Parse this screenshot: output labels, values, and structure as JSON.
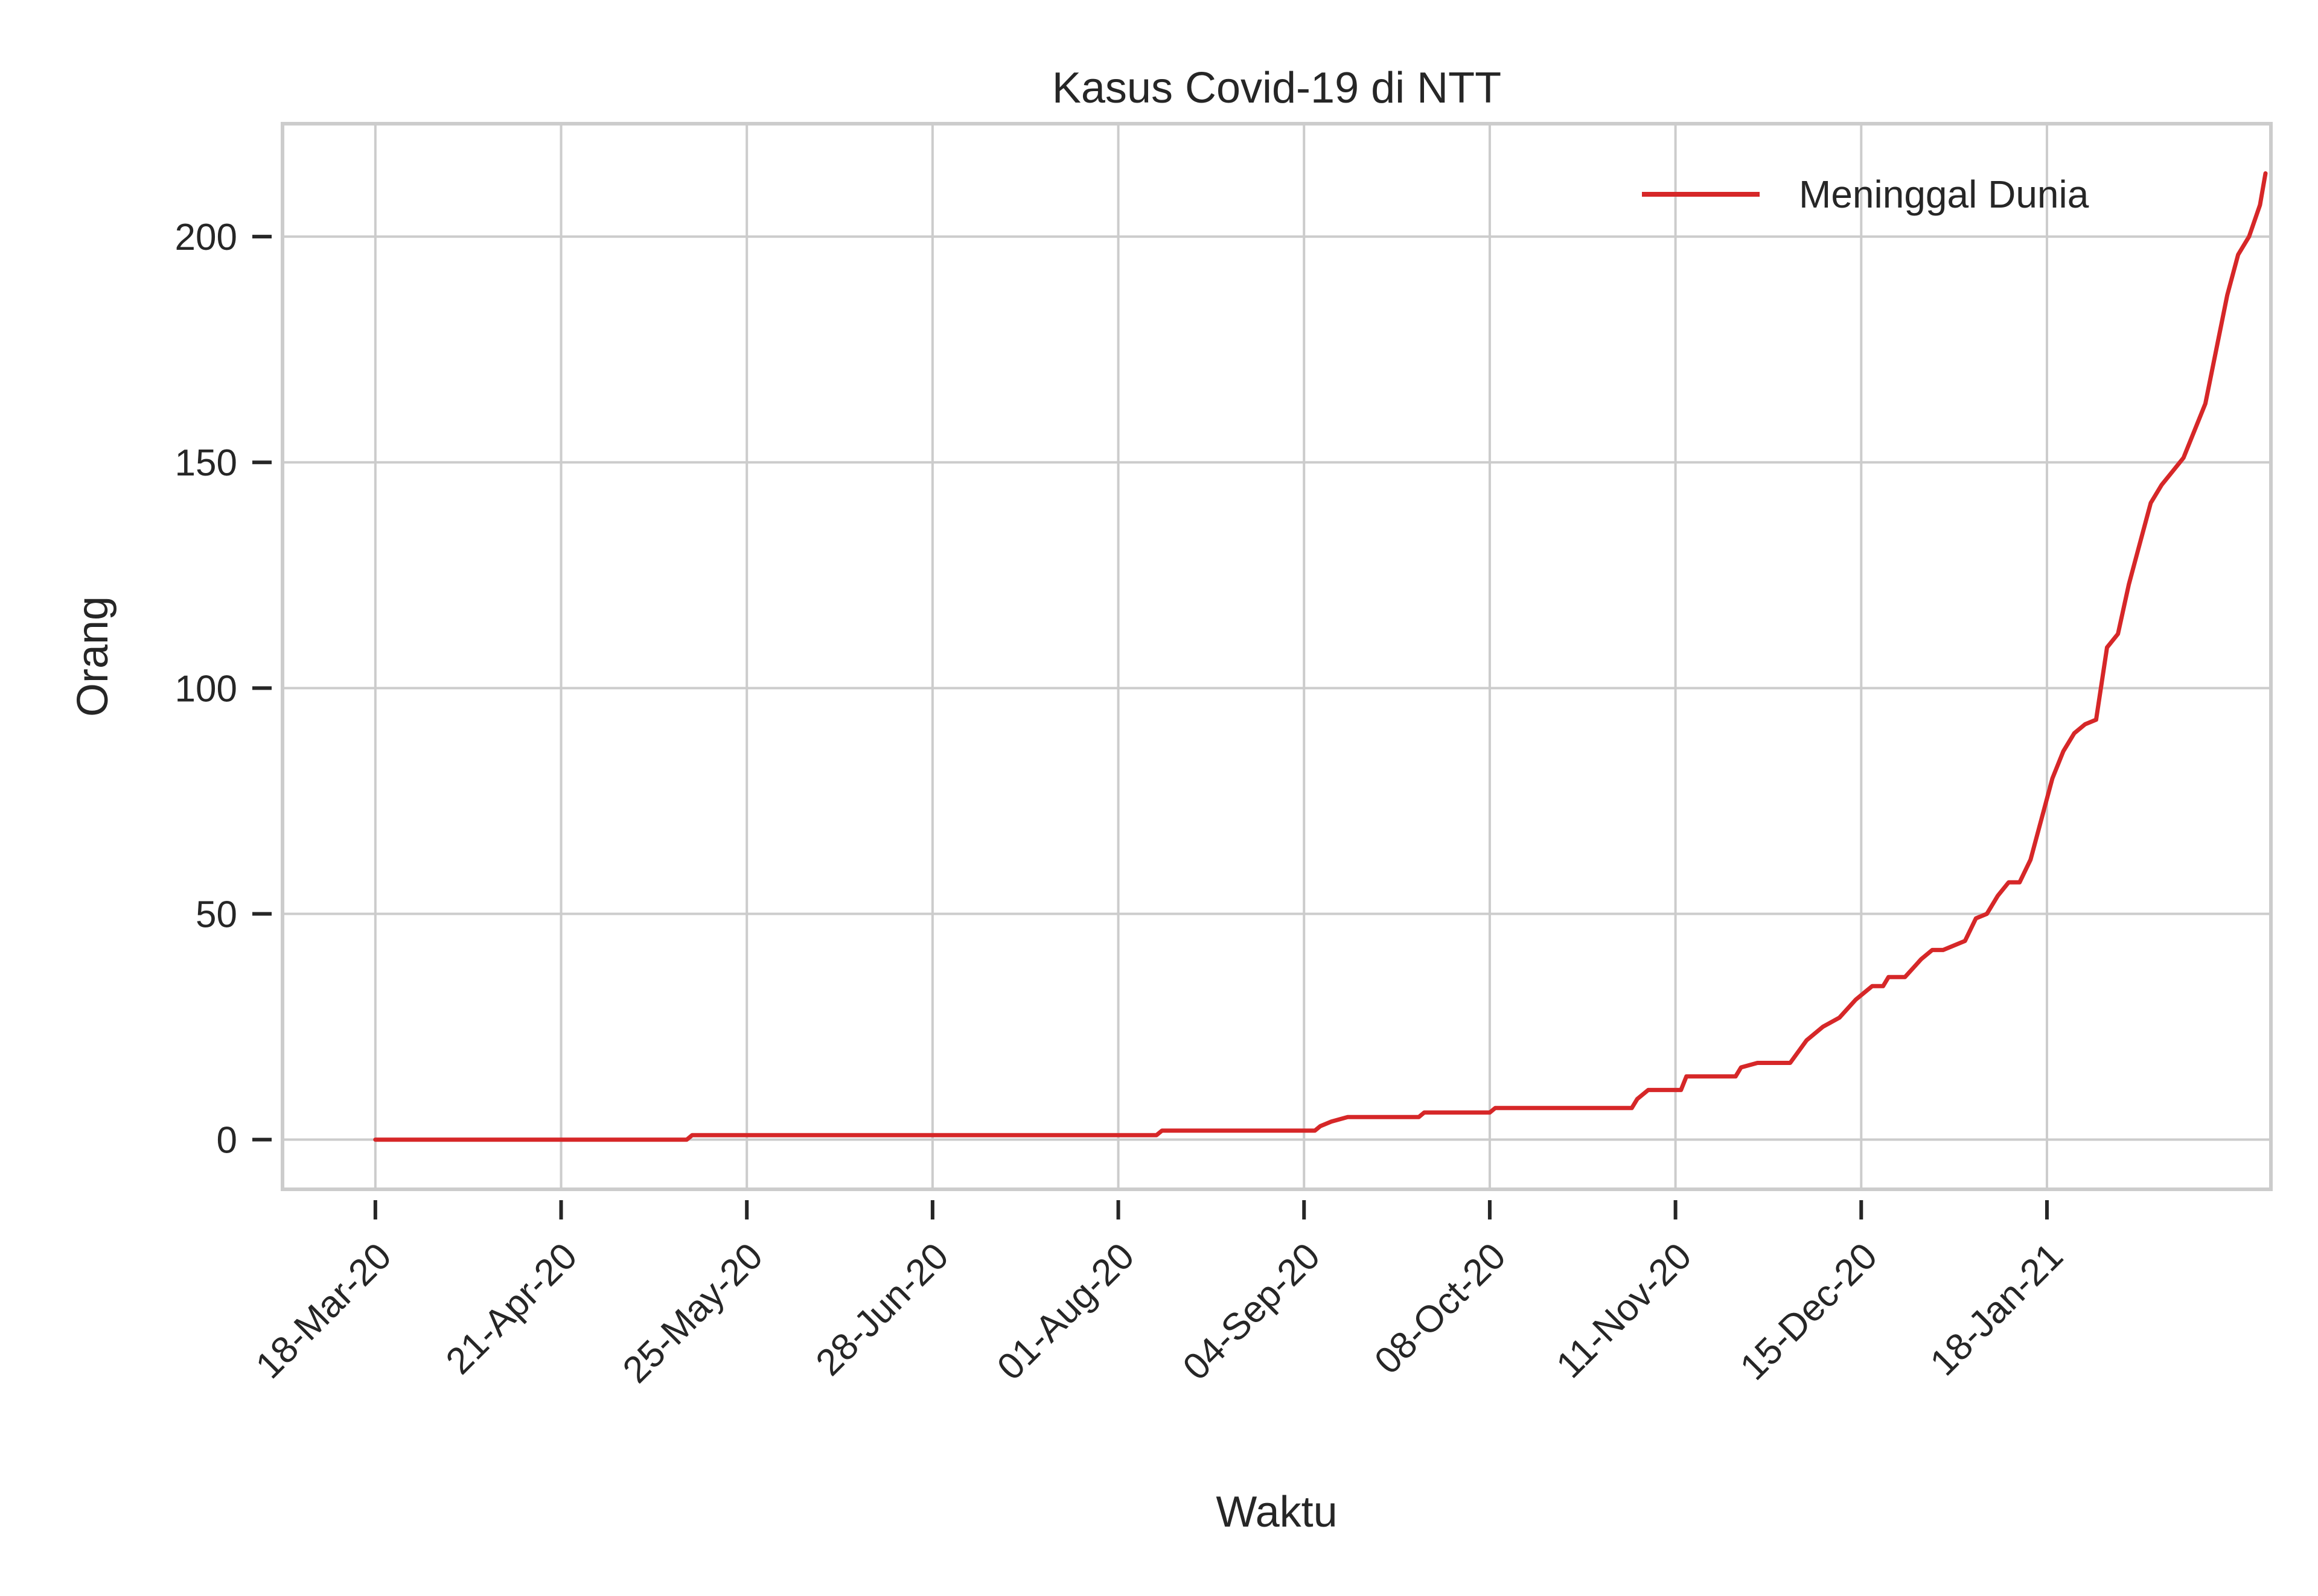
{
  "chart_data": {
    "type": "line",
    "title": "Kasus Covid-19 di NTT",
    "xlabel": "Waktu",
    "ylabel": "Orang",
    "x_ticks": [
      "18-Mar-20",
      "21-Apr-20",
      "25-May-20",
      "28-Jun-20",
      "01-Aug-20",
      "04-Sep-20",
      "08-Oct-20",
      "11-Nov-20",
      "15-Dec-20",
      "18-Jan-21"
    ],
    "y_ticks": [
      0,
      50,
      100,
      150,
      200
    ],
    "xlim": [
      "2020-03-01",
      "2021-02-28"
    ],
    "ylim": [
      -11,
      225
    ],
    "grid": true,
    "legend_position": "top-right",
    "colors": {
      "line": "#d62728",
      "grid": "#cccccc",
      "frame": "#cccccc",
      "text": "#262626"
    },
    "series": [
      {
        "name": "Meninggal Dunia",
        "color": "#d62728",
        "points": [
          [
            "2020-03-18",
            0
          ],
          [
            "2020-05-14",
            0
          ],
          [
            "2020-05-15",
            1
          ],
          [
            "2020-08-08",
            1
          ],
          [
            "2020-08-09",
            2
          ],
          [
            "2020-09-06",
            2
          ],
          [
            "2020-09-07",
            3
          ],
          [
            "2020-09-09",
            4
          ],
          [
            "2020-09-12",
            5
          ],
          [
            "2020-09-25",
            5
          ],
          [
            "2020-09-26",
            6
          ],
          [
            "2020-10-08",
            6
          ],
          [
            "2020-10-09",
            7
          ],
          [
            "2020-11-03",
            7
          ],
          [
            "2020-11-04",
            9
          ],
          [
            "2020-11-06",
            11
          ],
          [
            "2020-11-12",
            11
          ],
          [
            "2020-11-13",
            14
          ],
          [
            "2020-11-22",
            14
          ],
          [
            "2020-11-23",
            16
          ],
          [
            "2020-11-26",
            17
          ],
          [
            "2020-12-02",
            17
          ],
          [
            "2020-12-05",
            22
          ],
          [
            "2020-12-08",
            25
          ],
          [
            "2020-12-11",
            27
          ],
          [
            "2020-12-14",
            31
          ],
          [
            "2020-12-17",
            34
          ],
          [
            "2020-12-19",
            34
          ],
          [
            "2020-12-20",
            36
          ],
          [
            "2020-12-23",
            36
          ],
          [
            "2020-12-26",
            40
          ],
          [
            "2020-12-28",
            42
          ],
          [
            "2020-12-30",
            42
          ],
          [
            "2021-01-01",
            43
          ],
          [
            "2021-01-03",
            44
          ],
          [
            "2021-01-05",
            49
          ],
          [
            "2021-01-07",
            50
          ],
          [
            "2021-01-09",
            54
          ],
          [
            "2021-01-11",
            57
          ],
          [
            "2021-01-13",
            57
          ],
          [
            "2021-01-15",
            62
          ],
          [
            "2021-01-17",
            71
          ],
          [
            "2021-01-19",
            80
          ],
          [
            "2021-01-21",
            86
          ],
          [
            "2021-01-23",
            90
          ],
          [
            "2021-01-25",
            92
          ],
          [
            "2021-01-27",
            93
          ],
          [
            "2021-01-29",
            109
          ],
          [
            "2021-01-31",
            112
          ],
          [
            "2021-02-02",
            123
          ],
          [
            "2021-02-04",
            132
          ],
          [
            "2021-02-06",
            141
          ],
          [
            "2021-02-08",
            145
          ],
          [
            "2021-02-10",
            148
          ],
          [
            "2021-02-12",
            151
          ],
          [
            "2021-02-14",
            157
          ],
          [
            "2021-02-16",
            163
          ],
          [
            "2021-02-18",
            175
          ],
          [
            "2021-02-20",
            187
          ],
          [
            "2021-02-22",
            196
          ],
          [
            "2021-02-24",
            200
          ],
          [
            "2021-02-26",
            207
          ],
          [
            "2021-02-27",
            214
          ]
        ]
      }
    ]
  }
}
